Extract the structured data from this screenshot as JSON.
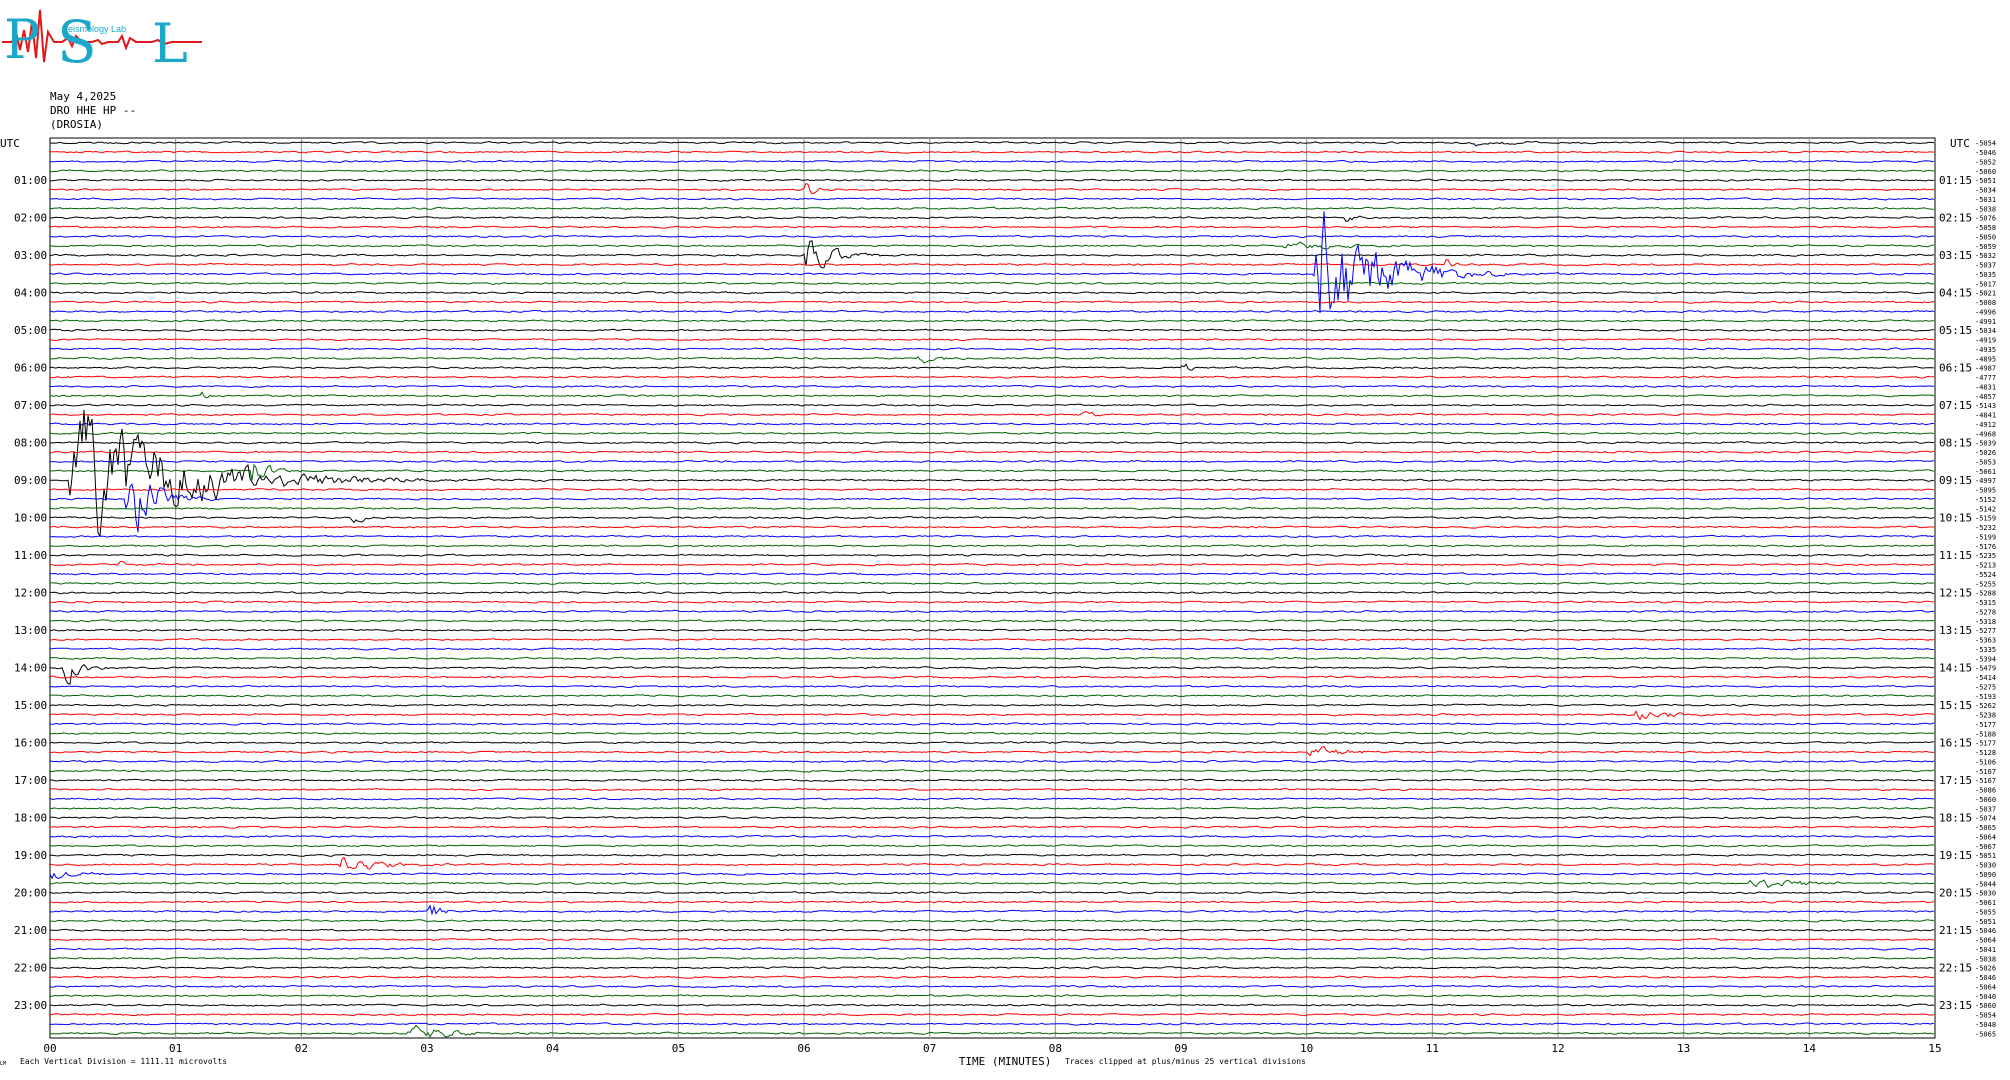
{
  "logo": {
    "letters": [
      "P",
      "S",
      "L"
    ],
    "subtitle": "Seismology Lab",
    "primary_color": "#1aa7c9",
    "wave_color": "#e01a1a"
  },
  "header": {
    "date": "May 4,2025",
    "station_line": "DRO HHE HP --",
    "location": "(DROSIA)"
  },
  "chart_data": {
    "type": "line",
    "title": "",
    "xlabel": "TIME (MINUTES)",
    "ylabel": "",
    "xlim": [
      0,
      15
    ],
    "x_ticks": [
      "00",
      "01",
      "02",
      "03",
      "04",
      "05",
      "06",
      "07",
      "08",
      "09",
      "10",
      "11",
      "12",
      "13",
      "14",
      "15"
    ],
    "left_axis_title": "UTC",
    "right_axis_title": "UTC",
    "left_hour_labels": [
      "01:00",
      "02:00",
      "03:00",
      "04:00",
      "05:00",
      "06:00",
      "07:00",
      "08:00",
      "09:00",
      "10:00",
      "11:00",
      "12:00",
      "13:00",
      "14:00",
      "15:00",
      "16:00",
      "17:00",
      "18:00",
      "19:00",
      "20:00",
      "21:00",
      "22:00",
      "23:00"
    ],
    "right_hour_labels": [
      "01:15",
      "02:15",
      "03:15",
      "04:15",
      "05:15",
      "06:15",
      "07:15",
      "08:15",
      "09:15",
      "10:15",
      "11:15",
      "12:15",
      "13:15",
      "14:15",
      "15:15",
      "16:15",
      "17:15",
      "18:15",
      "19:15",
      "20:15",
      "21:15",
      "22:15",
      "23:15"
    ],
    "trace_colors": [
      "#000000",
      "#ff0000",
      "#0000ff",
      "#006400"
    ],
    "trace_count": 96,
    "trace_minutes": 15,
    "trace_offsets": [
      -5054,
      -5046,
      -5052,
      -5060,
      -5051,
      -5034,
      -5031,
      -5038,
      -5076,
      -5058,
      -5050,
      -5059,
      -5032,
      -5037,
      -5035,
      -5017,
      -5021,
      -5008,
      -4996,
      -4991,
      -5034,
      -4919,
      -4935,
      -4895,
      -4987,
      -4777,
      -4831,
      -4857,
      -5143,
      -4841,
      -4912,
      -4968,
      -5039,
      -5026,
      -5053,
      -5061,
      -4997,
      -5095,
      -5152,
      -5142,
      -5159,
      -5232,
      -5199,
      -5176,
      -5235,
      -5213,
      -5524,
      -5255,
      -5288,
      -5315,
      -5278,
      -5318,
      -5277,
      -5363,
      -5335,
      -5394,
      -5479,
      -5414,
      -5275,
      -5193,
      -5262,
      -5238,
      -5177,
      -5188,
      -5177,
      -5128,
      -5106,
      -5167,
      -5167,
      -5086,
      -5060,
      -5037,
      -5074,
      -5065,
      -5064,
      -5067,
      -5051,
      -5030,
      -5090,
      -5044,
      -5030,
      -5061,
      -5055,
      -5051,
      -5046,
      -5064,
      -5041,
      -5038,
      -5026,
      -5046,
      -5064,
      -5040,
      -5060,
      -5054,
      -5048,
      -5065
    ],
    "events": [
      {
        "trace": 0,
        "minute_start": 11.3,
        "minute_end": 12.6,
        "amplitude": 3
      },
      {
        "trace": 5,
        "minute_start": 6.0,
        "minute_end": 6.5,
        "amplitude": 7
      },
      {
        "trace": 8,
        "minute_start": 10.3,
        "minute_end": 10.7,
        "amplitude": 6
      },
      {
        "trace": 11,
        "minute_start": 9.8,
        "minute_end": 11.8,
        "amplitude": 4
      },
      {
        "trace": 12,
        "minute_start": 6.0,
        "minute_end": 7.0,
        "amplitude": 18
      },
      {
        "trace": 13,
        "minute_start": 11.1,
        "minute_end": 11.3,
        "amplitude": 10
      },
      {
        "trace": 14,
        "minute_start": 10.05,
        "minute_end": 12.1,
        "amplitude": 64
      },
      {
        "trace": 23,
        "minute_start": 6.9,
        "minute_end": 7.9,
        "amplitude": 5
      },
      {
        "trace": 24,
        "minute_start": 9.0,
        "minute_end": 9.3,
        "amplitude": 6
      },
      {
        "trace": 27,
        "minute_start": 1.2,
        "minute_end": 1.6,
        "amplitude": 5
      },
      {
        "trace": 29,
        "minute_start": 8.2,
        "minute_end": 8.7,
        "amplitude": 4
      },
      {
        "trace": 35,
        "minute_start": 1.6,
        "minute_end": 2.1,
        "amplitude": 18
      },
      {
        "trace": 36,
        "minute_start": 0.15,
        "minute_end": 4.0,
        "amplitude": 60
      },
      {
        "trace": 38,
        "minute_start": 0.6,
        "minute_end": 1.4,
        "amplitude": 48
      },
      {
        "trace": 40,
        "minute_start": 2.4,
        "minute_end": 2.8,
        "amplitude": 6
      },
      {
        "trace": 45,
        "minute_start": 0.55,
        "minute_end": 0.7,
        "amplitude": 6
      },
      {
        "trace": 56,
        "minute_start": 0.1,
        "minute_end": 0.7,
        "amplitude": 14
      },
      {
        "trace": 57,
        "minute_start": 2.5,
        "minute_end": 2.8,
        "amplitude": 4
      },
      {
        "trace": 61,
        "minute_start": 12.6,
        "minute_end": 13.7,
        "amplitude": 8
      },
      {
        "trace": 65,
        "minute_start": 10.0,
        "minute_end": 11.5,
        "amplitude": 5
      },
      {
        "trace": 77,
        "minute_start": 2.3,
        "minute_end": 3.6,
        "amplitude": 10
      },
      {
        "trace": 78,
        "minute_start": 0.0,
        "minute_end": 0.7,
        "amplitude": 6
      },
      {
        "trace": 79,
        "minute_start": 13.5,
        "minute_end": 15.0,
        "amplitude": 8
      },
      {
        "trace": 82,
        "minute_start": 3.0,
        "minute_end": 3.4,
        "amplitude": 12
      },
      {
        "trace": 95,
        "minute_start": 2.8,
        "minute_end": 4.6,
        "amplitude": 8
      }
    ]
  },
  "footer": {
    "scale_note": "Each Vertical Division = 1111.11 microvolts",
    "clip_note": "Traces clipped at plus/minus 25 vertical divisions",
    "corner_mark": "LM"
  }
}
